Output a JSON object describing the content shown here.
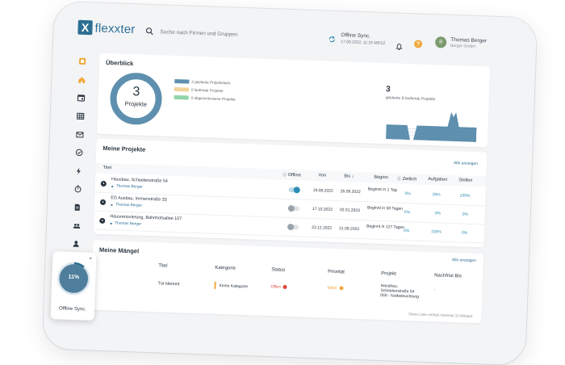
{
  "header": {
    "logo_mark": "X",
    "logo_text": "flexxter",
    "search_placeholder": "Suche nach Firmen und Gruppen",
    "sync_title": "Offline Sync.",
    "sync_time": "17.08.2022, 11:25 MESZ",
    "help": "?",
    "user_initial": "B",
    "user_name": "Thomas Berger",
    "user_company": "Berger GmbH"
  },
  "sidebar": {
    "items": [
      "dashboard-icon",
      "home-icon",
      "calendar-icon",
      "table-icon",
      "mail-icon",
      "check-circle-icon",
      "bolt-icon",
      "timer-icon",
      "document-icon",
      "group-icon",
      "person-icon",
      "tools-icon",
      "puzzle-icon"
    ]
  },
  "overview": {
    "title": "Überblick",
    "donut_number": "3",
    "donut_label": "Projekte",
    "legend": [
      {
        "label": "3 geplante Projektstarts",
        "color": "#5e8fae"
      },
      {
        "label": "0 laufende Projekte",
        "color": "#f2d49a"
      },
      {
        "label": "0 abgeschlossene Projekte",
        "color": "#8ed4a9"
      }
    ],
    "big_number": "3",
    "big_caption": "geplante & laufende Projekte"
  },
  "projects": {
    "title": "Meine Projekte",
    "show_all": "Alle anzeigen",
    "columns": {
      "title": "Titel",
      "offline": "Offline",
      "from": "Von",
      "to": "Bis",
      "start": "Beginn",
      "time": "Zeitlich",
      "tasks": "Aufgaben",
      "places": "Stellen"
    },
    "rows": [
      {
        "title": "Hausbau, Scheelenstraße 54",
        "user": "Thomas Berger",
        "offline": true,
        "from": "19.08.2022",
        "to": "26.09.2022",
        "start": "Beginnt in 1 Tag",
        "time": "0%",
        "tasks": "26%",
        "places": "100%"
      },
      {
        "title": "EG Ausbau, Immenstraße 33",
        "user": "Thomas Berger",
        "offline": false,
        "from": "17.10.2022",
        "to": "02.01.2023",
        "start": "Beginnt in 60 Tagen",
        "time": "0%",
        "tasks": "0%",
        "places": "0%"
      },
      {
        "title": "Hausrenovierung, Bahnhofsallee 107",
        "user": "Thomas Berger",
        "offline": false,
        "from": "23.12.2022",
        "to": "21.09.2023",
        "start": "Beginnt in 127 Tagen",
        "time": "0%",
        "tasks": "100%",
        "places": "0%"
      }
    ]
  },
  "defects": {
    "title": "Meine Mängel",
    "show_all": "Alle anzeigen",
    "columns": {
      "title": "Titel",
      "category": "Kategorie",
      "status": "Status",
      "priority": "Priorität",
      "project": "Projekt",
      "deadline": "Nachfrist Bis"
    },
    "row": {
      "title": "Tür klemmt",
      "category": "Keine Kategorie",
      "status": "Offen",
      "priority": "Mittel",
      "project_line1": "Hausbau,",
      "project_line2": "Scheelenstraße 54",
      "project_line3": "059 - Notbeleuchtung",
      "deadline": "-"
    },
    "footnote": "Diese Liste enthält maximal 10 Mängel."
  },
  "offline_widget": {
    "percent": "11%",
    "progress": 0.11,
    "label": "Offline Sync."
  },
  "colors": {
    "accent": "#2d6f93",
    "donut": "#5e8fae",
    "area": "#5e8fae",
    "toggle_on": "#2d8cb3",
    "status_open": "#e0483e",
    "priority_mid": "#f0a83c",
    "category_bar": "#f0a83c"
  }
}
